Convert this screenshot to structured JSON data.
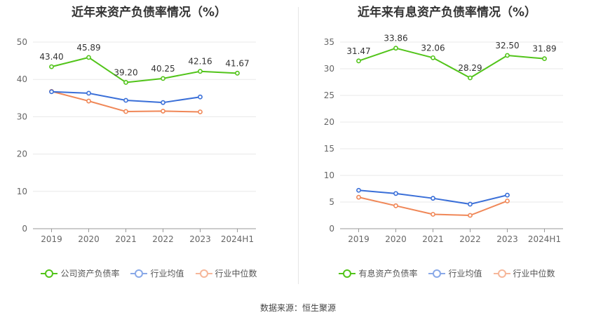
{
  "source_label": "数据来源：恒生聚源",
  "chart_data": [
    {
      "type": "line",
      "title": "近年来资产负债率情况（%）",
      "categories": [
        "2019",
        "2020",
        "2021",
        "2022",
        "2023",
        "2024H1"
      ],
      "ylim": [
        0,
        50
      ],
      "yticks": [
        0,
        10,
        20,
        30,
        40,
        50
      ],
      "grid": true,
      "legend_position": "bottom",
      "series": [
        {
          "name": "公司资产负债率",
          "color": "#52c41a",
          "values": [
            43.4,
            45.89,
            39.2,
            40.25,
            42.16,
            41.67
          ],
          "labels": [
            "43.40",
            "45.89",
            "39.20",
            "40.25",
            "42.16",
            "41.67"
          ]
        },
        {
          "name": "行业均值",
          "color": "#3a6fd8",
          "values": [
            36.7,
            36.3,
            34.4,
            33.8,
            35.3,
            null
          ]
        },
        {
          "name": "行业中位数",
          "color": "#f08757",
          "values": [
            36.8,
            34.2,
            31.4,
            31.5,
            31.3,
            null
          ]
        }
      ]
    },
    {
      "type": "line",
      "title": "近年来有息资产负债率情况（%）",
      "categories": [
        "2019",
        "2020",
        "2021",
        "2022",
        "2023",
        "2024H1"
      ],
      "ylim": [
        0,
        35
      ],
      "yticks": [
        0,
        5,
        10,
        15,
        20,
        25,
        30,
        35
      ],
      "grid": true,
      "legend_position": "bottom",
      "series": [
        {
          "name": "有息资产负债率",
          "color": "#52c41a",
          "values": [
            31.47,
            33.86,
            32.06,
            28.29,
            32.5,
            31.89
          ],
          "labels": [
            "31.47",
            "33.86",
            "32.06",
            "28.29",
            "32.50",
            "31.89"
          ]
        },
        {
          "name": "行业均值",
          "color": "#3a6fd8",
          "values": [
            7.2,
            6.6,
            5.7,
            4.6,
            6.3,
            null
          ]
        },
        {
          "name": "行业中位数",
          "color": "#f08757",
          "values": [
            5.9,
            4.3,
            2.7,
            2.5,
            5.2,
            null
          ]
        }
      ]
    }
  ]
}
